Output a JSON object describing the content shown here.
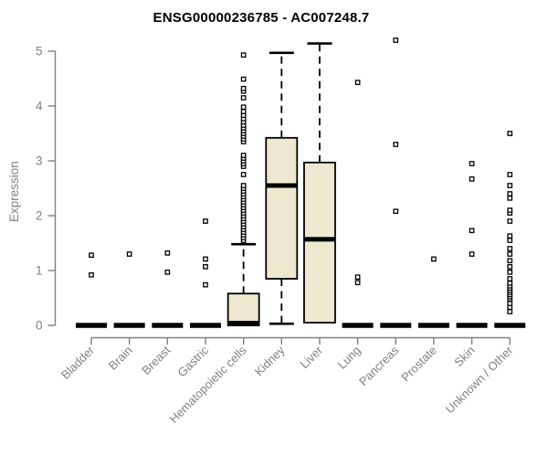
{
  "chart_data": {
    "type": "boxplot",
    "title": "ENSG00000236785 - AC007248.7",
    "ylabel": "Expression",
    "xlabel": "",
    "ylim": [
      0,
      5
    ],
    "yticks": [
      0,
      1,
      2,
      3,
      4,
      5
    ],
    "grid": false,
    "legend": "none",
    "categories": [
      "Bladder",
      "Brain",
      "Breast",
      "Gastric",
      "Hematopoietic cells",
      "Kidney",
      "Liver",
      "Lung",
      "Pancreas",
      "Prostate",
      "Skin",
      "Unknown / Other"
    ],
    "boxes": [
      {
        "category": "Bladder",
        "low": 0,
        "q1": 0,
        "median": 0,
        "q3": 0,
        "high": 0,
        "outliers": [
          0.92,
          1.28
        ]
      },
      {
        "category": "Brain",
        "low": 0,
        "q1": 0,
        "median": 0,
        "q3": 0,
        "high": 0,
        "outliers": [
          1.3
        ]
      },
      {
        "category": "Breast",
        "low": 0,
        "q1": 0,
        "median": 0,
        "q3": 0,
        "high": 0,
        "outliers": [
          0.97,
          1.32
        ]
      },
      {
        "category": "Gastric",
        "low": 0,
        "q1": 0,
        "median": 0,
        "q3": 0,
        "high": 0,
        "outliers": [
          0.74,
          1.07,
          1.21,
          1.9
        ]
      },
      {
        "category": "Hematopoietic cells",
        "low": 0,
        "q1": 0,
        "median": 0.04,
        "q3": 0.58,
        "high": 1.48,
        "outliers": [
          1.55,
          1.6,
          1.65,
          1.7,
          1.75,
          1.8,
          1.85,
          1.9,
          1.95,
          2.0,
          2.05,
          2.1,
          2.15,
          2.2,
          2.25,
          2.3,
          2.35,
          2.4,
          2.45,
          2.5,
          2.55,
          2.75,
          2.9,
          2.95,
          3.0,
          3.05,
          3.1,
          3.35,
          3.4,
          3.45,
          3.5,
          3.55,
          3.6,
          3.65,
          3.71,
          3.77,
          3.83,
          3.9,
          3.98,
          4.15,
          4.27,
          4.32,
          4.49,
          4.93
        ]
      },
      {
        "category": "Kidney",
        "low": 0.03,
        "q1": 0.85,
        "median": 2.55,
        "q3": 3.42,
        "high": 4.97,
        "outliers": []
      },
      {
        "category": "Liver",
        "low": 0.05,
        "q1": 0.05,
        "median": 1.57,
        "q3": 2.97,
        "high": 5.14,
        "outliers": []
      },
      {
        "category": "Lung",
        "low": 0,
        "q1": 0,
        "median": 0,
        "q3": 0,
        "high": 0,
        "outliers": [
          0.78,
          0.88,
          4.43
        ]
      },
      {
        "category": "Pancreas",
        "low": 0,
        "q1": 0,
        "median": 0,
        "q3": 0,
        "high": 0,
        "outliers": [
          2.08,
          3.3,
          5.2
        ]
      },
      {
        "category": "Prostate",
        "low": 0,
        "q1": 0,
        "median": 0,
        "q3": 0,
        "high": 0,
        "outliers": [
          1.21
        ]
      },
      {
        "category": "Skin",
        "low": 0,
        "q1": 0,
        "median": 0,
        "q3": 0,
        "high": 0,
        "outliers": [
          1.3,
          1.73,
          2.67,
          2.95
        ]
      },
      {
        "category": "Unknown / Other",
        "low": 0,
        "q1": 0,
        "median": 0,
        "q3": 0,
        "high": 0,
        "outliers": [
          0.25,
          0.33,
          0.4,
          0.48,
          0.52,
          0.56,
          0.6,
          0.64,
          0.68,
          0.72,
          0.77,
          0.85,
          0.97,
          1.07,
          1.18,
          1.3,
          1.4,
          1.55,
          1.63,
          1.9,
          2.05,
          2.1,
          2.32,
          2.4,
          2.55,
          2.75,
          3.5
        ]
      }
    ],
    "colors": {
      "box_fill": "#ede8cf",
      "box_stroke": "#000000",
      "median": "#000000",
      "whisker": "#000000",
      "outlier_stroke": "#000000",
      "outlier_fill": "#ffffff",
      "axis": "#808080",
      "tick_label": "#808080",
      "title": "#000000"
    }
  }
}
